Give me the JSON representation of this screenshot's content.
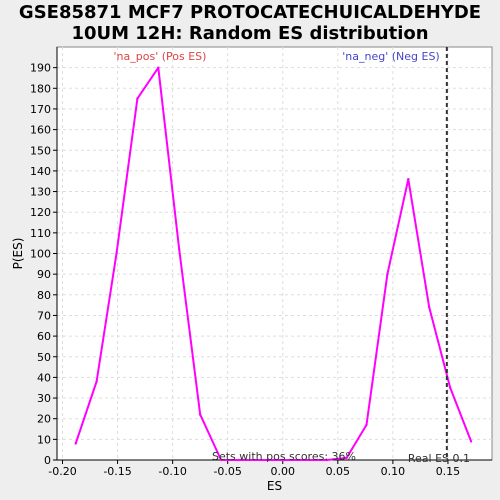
{
  "chart_data": {
    "type": "line",
    "title": "GSE85871 MCF7 PROTOCATECHUICALDEHYDE 10UM 12H: Random ES distribution",
    "title_lines": [
      "GSE85871 MCF7 PROTOCATECHUICALDEHYDE",
      "10UM 12H: Random ES distribution"
    ],
    "xlabel": "ES",
    "ylabel": "P(ES)",
    "xlim": [
      -0.205,
      0.19
    ],
    "ylim": [
      0,
      200
    ],
    "xticks": [
      -0.2,
      -0.15,
      -0.1,
      -0.05,
      0.0,
      0.05,
      0.1,
      0.15
    ],
    "xtick_labels": [
      "-0.20",
      "-0.15",
      "-0.10",
      "-0.05",
      "0.00",
      "0.05",
      "0.10",
      "0.15"
    ],
    "yticks": [
      0,
      10,
      20,
      30,
      40,
      50,
      60,
      70,
      80,
      90,
      100,
      110,
      120,
      130,
      140,
      150,
      160,
      170,
      180,
      190
    ],
    "grid": true,
    "series": [
      {
        "name": "",
        "color": "#ff00ff",
        "x": [
          -0.188,
          -0.169,
          -0.151,
          -0.132,
          -0.113,
          -0.094,
          -0.075,
          -0.056,
          -0.04,
          0.0,
          0.04,
          0.058,
          0.076,
          0.095,
          0.114,
          0.133,
          0.152,
          0.171
        ],
        "y": [
          8,
          38,
          100,
          175,
          190,
          102,
          22,
          0,
          0,
          0,
          0,
          1,
          17,
          90,
          136,
          74,
          35,
          9
        ]
      }
    ],
    "real_es": 0.149,
    "annotations": {
      "pos_label": "'na_pos' (Pos ES)",
      "neg_label": "'na_neg' (Neg ES)",
      "pos_score_text": "Sets with pos scores: 36%",
      "real_es_text": "Real ES 0.1"
    },
    "colors": {
      "pos_label": "#dd4444",
      "neg_label": "#4444cc",
      "line": "#ff00ff",
      "real_es_line": "#333333",
      "grid": "#dddddd",
      "plot_bg": "#ffffff",
      "page_bg": "#eeeeee"
    }
  }
}
